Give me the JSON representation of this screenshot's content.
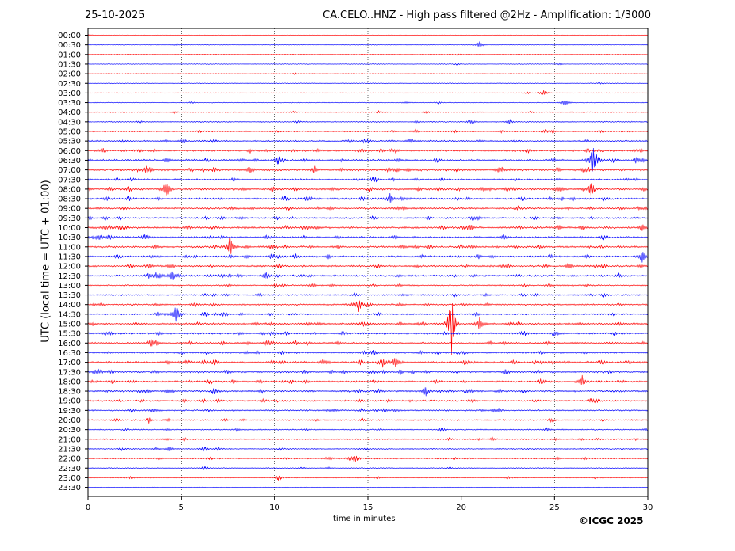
{
  "header": {
    "date": "25-10-2025",
    "title": "CA.CELO..HNZ - High pass filtered @2Hz - Amplification: 1/3000"
  },
  "footer": {
    "copyright": "©ICGC 2025"
  },
  "chart_data": {
    "type": "line",
    "title": "CA.CELO..HNZ - High pass filtered @2Hz - Amplification: 1/3000",
    "subtitle": "25-10-2025",
    "xlabel": "time in minutes",
    "ylabel": "UTC (local time = UTC + 01:00)",
    "xlim": [
      0,
      30
    ],
    "x_ticks": [
      0,
      5,
      10,
      15,
      20,
      25,
      30
    ],
    "grid": "vertical dotted lines at 5-minute intervals",
    "trace_colors": [
      "#ff0000",
      "#0000ff"
    ],
    "rows": [
      "00:00",
      "00:30",
      "01:00",
      "01:30",
      "02:00",
      "02:30",
      "03:00",
      "03:30",
      "04:00",
      "04:30",
      "05:00",
      "05:30",
      "06:00",
      "06:30",
      "07:00",
      "07:30",
      "08:00",
      "08:30",
      "09:00",
      "09:30",
      "10:00",
      "10:30",
      "11:00",
      "11:30",
      "12:00",
      "12:30",
      "13:00",
      "13:30",
      "14:00",
      "14:30",
      "15:00",
      "15:30",
      "16:00",
      "16:30",
      "17:00",
      "17:30",
      "18:00",
      "18:30",
      "19:00",
      "19:30",
      "20:00",
      "20:30",
      "21:00",
      "21:30",
      "22:00",
      "22:30",
      "23:00",
      "23:30"
    ],
    "activity": [
      0.02,
      0.05,
      0.04,
      0.06,
      0.02,
      0.05,
      0.03,
      0.1,
      0.18,
      0.28,
      0.4,
      0.55,
      0.7,
      0.85,
      0.9,
      0.6,
      0.8,
      0.75,
      0.65,
      0.65,
      0.8,
      0.7,
      0.75,
      0.7,
      0.7,
      0.75,
      0.45,
      0.5,
      0.55,
      0.5,
      0.7,
      0.65,
      0.65,
      0.6,
      0.85,
      0.75,
      0.7,
      0.7,
      0.6,
      0.5,
      0.45,
      0.35,
      0.35,
      0.35,
      0.4,
      0.2,
      0.15,
      0.01
    ],
    "events": [
      {
        "row": "00:30",
        "minute": 21.0,
        "amp": 0.4
      },
      {
        "row": "03:00",
        "minute": 24.4,
        "amp": 0.35
      },
      {
        "row": "03:30",
        "minute": 25.6,
        "amp": 0.45
      },
      {
        "row": "06:30",
        "minute": 27.1,
        "amp": 1.6
      },
      {
        "row": "08:00",
        "minute": 4.2,
        "amp": 1.0
      },
      {
        "row": "08:00",
        "minute": 27.0,
        "amp": 0.9
      },
      {
        "row": "08:30",
        "minute": 16.2,
        "amp": 0.6
      },
      {
        "row": "11:00",
        "minute": 7.6,
        "amp": 0.9
      },
      {
        "row": "11:30",
        "minute": 29.7,
        "amp": 0.5
      },
      {
        "row": "12:30",
        "minute": 4.5,
        "amp": 0.6
      },
      {
        "row": "14:00",
        "minute": 14.5,
        "amp": 0.6
      },
      {
        "row": "14:30",
        "minute": 4.7,
        "amp": 1.2
      },
      {
        "row": "15:00",
        "minute": 19.5,
        "amp": 3.2
      },
      {
        "row": "15:00",
        "minute": 21.0,
        "amp": 0.7
      },
      {
        "row": "16:00",
        "minute": 3.4,
        "amp": 0.6
      },
      {
        "row": "17:00",
        "minute": 15.8,
        "amp": 0.6
      },
      {
        "row": "17:00",
        "minute": 16.5,
        "amp": 0.6
      },
      {
        "row": "18:00",
        "minute": 26.5,
        "amp": 0.6
      },
      {
        "row": "18:30",
        "minute": 6.8,
        "amp": 0.5
      },
      {
        "row": "18:30",
        "minute": 18.1,
        "amp": 0.5
      },
      {
        "row": "22:00",
        "minute": 14.3,
        "amp": 0.4
      },
      {
        "row": "23:00",
        "minute": 10.2,
        "amp": 0.35
      }
    ]
  }
}
